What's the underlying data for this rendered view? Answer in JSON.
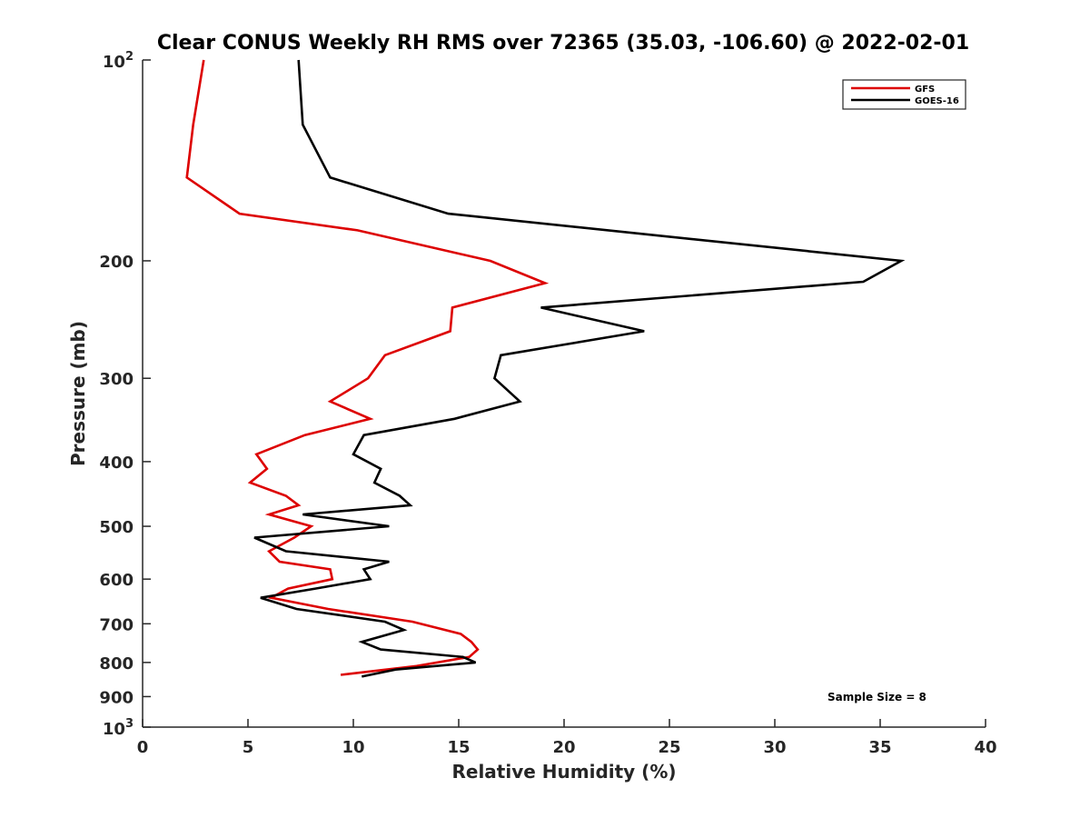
{
  "chart_data": {
    "type": "line",
    "title": "Clear CONUS Weekly RH RMS over 72365 (35.03, -106.60) @ 2022-02-01",
    "xlabel": "Relative Humidity (%)",
    "ylabel": "Pressure (mb)",
    "xlim": [
      0,
      40
    ],
    "ylim": [
      100,
      1000
    ],
    "y_scale": "log",
    "y_reversed": true,
    "x_ticks": [
      "0",
      "5",
      "10",
      "15",
      "20",
      "25",
      "30",
      "35",
      "40"
    ],
    "y_ticks": [
      {
        "value": 100,
        "base": "10",
        "exp": "2"
      },
      {
        "value": 200,
        "label": "200"
      },
      {
        "value": 300,
        "label": "300"
      },
      {
        "value": 400,
        "label": "400"
      },
      {
        "value": 500,
        "label": "500"
      },
      {
        "value": 600,
        "label": "600"
      },
      {
        "value": 700,
        "label": "700"
      },
      {
        "value": 800,
        "label": "800"
      },
      {
        "value": 900,
        "label": "900"
      },
      {
        "value": 1000,
        "base": "10",
        "exp": "3"
      }
    ],
    "grid": false,
    "legend_position": "top-right",
    "annotation": "Sample Size = 8",
    "series": [
      {
        "name": "GFS",
        "color": "#dd0000",
        "points": [
          [
            2.9,
            100
          ],
          [
            2.4,
            125
          ],
          [
            2.1,
            150
          ],
          [
            4.6,
            170
          ],
          [
            10.2,
            180
          ],
          [
            16.5,
            200
          ],
          [
            19.1,
            216
          ],
          [
            14.7,
            235
          ],
          [
            14.6,
            255
          ],
          [
            11.5,
            277
          ],
          [
            10.7,
            300
          ],
          [
            8.9,
            325
          ],
          [
            10.8,
            345
          ],
          [
            7.7,
            365
          ],
          [
            5.4,
            390
          ],
          [
            5.9,
            410
          ],
          [
            5.1,
            430
          ],
          [
            6.8,
            450
          ],
          [
            7.4,
            465
          ],
          [
            6.0,
            480
          ],
          [
            8.0,
            500
          ],
          [
            7.2,
            520
          ],
          [
            6.0,
            545
          ],
          [
            6.5,
            565
          ],
          [
            8.9,
            580
          ],
          [
            9.0,
            600
          ],
          [
            6.9,
            620
          ],
          [
            6.1,
            640
          ],
          [
            8.8,
            665
          ],
          [
            12.8,
            695
          ],
          [
            15.1,
            725
          ],
          [
            15.6,
            745
          ],
          [
            15.9,
            765
          ],
          [
            15.5,
            785
          ],
          [
            13.0,
            810
          ],
          [
            9.4,
            835
          ]
        ]
      },
      {
        "name": "GOES-16",
        "color": "#000000",
        "points": [
          [
            7.4,
            100
          ],
          [
            7.6,
            125
          ],
          [
            8.9,
            150
          ],
          [
            14.5,
            170
          ],
          [
            36.0,
            200
          ],
          [
            34.2,
            215
          ],
          [
            18.9,
            235
          ],
          [
            23.8,
            255
          ],
          [
            17.0,
            277
          ],
          [
            16.7,
            300
          ],
          [
            17.9,
            325
          ],
          [
            14.8,
            345
          ],
          [
            10.5,
            365
          ],
          [
            10.0,
            390
          ],
          [
            11.3,
            410
          ],
          [
            11.0,
            430
          ],
          [
            12.2,
            450
          ],
          [
            12.7,
            465
          ],
          [
            7.6,
            480
          ],
          [
            11.7,
            500
          ],
          [
            5.3,
            520
          ],
          [
            6.8,
            545
          ],
          [
            11.7,
            565
          ],
          [
            10.5,
            580
          ],
          [
            10.8,
            600
          ],
          [
            8.2,
            620
          ],
          [
            5.6,
            640
          ],
          [
            7.3,
            665
          ],
          [
            11.5,
            695
          ],
          [
            12.4,
            715
          ],
          [
            10.4,
            745
          ],
          [
            11.3,
            765
          ],
          [
            15.2,
            785
          ],
          [
            15.8,
            800
          ],
          [
            12.0,
            820
          ],
          [
            10.4,
            840
          ]
        ]
      }
    ]
  }
}
